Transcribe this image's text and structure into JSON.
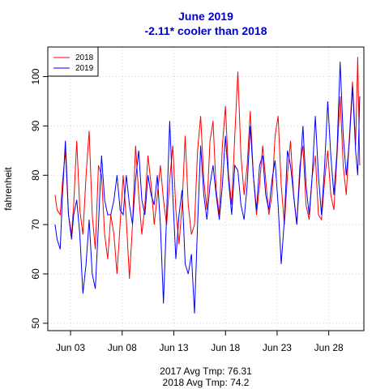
{
  "chart_data": {
    "type": "line",
    "title": "June 2019",
    "subtitle": "-2.11* cooler than 2018",
    "title_color": "#0000cc",
    "xlabel": "",
    "ylabel": "fahrenheit",
    "x_ticks": [
      "Jun 03",
      "Jun 08",
      "Jun 13",
      "Jun 18",
      "Jun 23",
      "Jun 28"
    ],
    "x_tick_days": [
      3,
      8,
      13,
      18,
      23,
      28
    ],
    "xlim_days": [
      0.8,
      31.4
    ],
    "ylim": [
      48.5,
      106
    ],
    "y_ticks": [
      50,
      60,
      70,
      80,
      90,
      100
    ],
    "grid": true,
    "legend": {
      "position": "top-left",
      "entries": [
        "2018",
        "2019"
      ]
    },
    "series": [
      {
        "name": "2018",
        "color": "#ff0000",
        "points": [
          [
            1.5,
            76
          ],
          [
            1.7,
            73
          ],
          [
            2.0,
            72
          ],
          [
            2.2,
            78
          ],
          [
            2.5,
            85
          ],
          [
            2.8,
            72
          ],
          [
            3.1,
            68
          ],
          [
            3.3,
            74
          ],
          [
            3.6,
            87
          ],
          [
            3.9,
            73
          ],
          [
            4.2,
            68
          ],
          [
            4.5,
            80
          ],
          [
            4.8,
            89
          ],
          [
            5.1,
            72
          ],
          [
            5.4,
            65
          ],
          [
            5.7,
            82
          ],
          [
            6.0,
            80
          ],
          [
            6.3,
            68
          ],
          [
            6.6,
            63
          ],
          [
            6.9,
            72
          ],
          [
            7.2,
            68
          ],
          [
            7.5,
            60
          ],
          [
            7.8,
            70
          ],
          [
            8.1,
            80
          ],
          [
            8.4,
            71
          ],
          [
            8.7,
            59
          ],
          [
            9.0,
            70
          ],
          [
            9.3,
            86
          ],
          [
            9.6,
            76
          ],
          [
            9.9,
            68
          ],
          [
            10.2,
            74
          ],
          [
            10.5,
            84
          ],
          [
            10.8,
            78
          ],
          [
            11.1,
            70
          ],
          [
            11.4,
            76
          ],
          [
            11.7,
            82
          ],
          [
            12.0,
            75
          ],
          [
            12.3,
            70
          ],
          [
            12.6,
            79
          ],
          [
            12.9,
            86
          ],
          [
            13.2,
            73
          ],
          [
            13.5,
            66
          ],
          [
            13.8,
            74
          ],
          [
            14.1,
            88
          ],
          [
            14.4,
            74
          ],
          [
            14.7,
            68
          ],
          [
            15.0,
            70
          ],
          [
            15.3,
            85
          ],
          [
            15.6,
            92
          ],
          [
            15.9,
            79
          ],
          [
            16.2,
            73
          ],
          [
            16.5,
            87
          ],
          [
            16.8,
            91
          ],
          [
            17.1,
            77
          ],
          [
            17.4,
            72
          ],
          [
            17.7,
            86
          ],
          [
            18.0,
            94
          ],
          [
            18.3,
            80
          ],
          [
            18.6,
            74
          ],
          [
            18.9,
            88
          ],
          [
            19.2,
            101
          ],
          [
            19.5,
            84
          ],
          [
            19.8,
            76
          ],
          [
            20.1,
            82
          ],
          [
            20.4,
            93
          ],
          [
            20.7,
            80
          ],
          [
            21.0,
            72
          ],
          [
            21.3,
            78
          ],
          [
            21.6,
            86
          ],
          [
            21.9,
            79
          ],
          [
            22.2,
            72
          ],
          [
            22.5,
            76
          ],
          [
            22.8,
            88
          ],
          [
            23.1,
            92
          ],
          [
            23.4,
            78
          ],
          [
            23.7,
            70
          ],
          [
            24.0,
            80
          ],
          [
            24.3,
            87
          ],
          [
            24.6,
            76
          ],
          [
            24.9,
            70
          ],
          [
            25.2,
            82
          ],
          [
            25.5,
            86
          ],
          [
            25.8,
            74
          ],
          [
            26.1,
            71
          ],
          [
            26.4,
            80
          ],
          [
            26.7,
            84
          ],
          [
            27.0,
            72
          ],
          [
            27.3,
            71
          ],
          [
            27.6,
            79
          ],
          [
            27.9,
            85
          ],
          [
            28.2,
            76
          ],
          [
            28.5,
            73
          ],
          [
            28.8,
            84
          ],
          [
            29.1,
            96
          ],
          [
            29.4,
            82
          ],
          [
            29.7,
            76
          ],
          [
            30.0,
            88
          ],
          [
            30.3,
            99
          ],
          [
            30.6,
            86
          ],
          [
            30.8,
            104
          ],
          [
            31.0,
            82
          ]
        ]
      },
      {
        "name": "2019",
        "color": "#0000ff",
        "points": [
          [
            1.5,
            70
          ],
          [
            1.7,
            67
          ],
          [
            2.0,
            65
          ],
          [
            2.2,
            75
          ],
          [
            2.5,
            87
          ],
          [
            2.8,
            72
          ],
          [
            3.1,
            67
          ],
          [
            3.3,
            72
          ],
          [
            3.6,
            75
          ],
          [
            3.9,
            68
          ],
          [
            4.2,
            56
          ],
          [
            4.5,
            62
          ],
          [
            4.8,
            71
          ],
          [
            5.1,
            60
          ],
          [
            5.4,
            57
          ],
          [
            5.7,
            70
          ],
          [
            6.0,
            84
          ],
          [
            6.3,
            75
          ],
          [
            6.6,
            72
          ],
          [
            6.9,
            72
          ],
          [
            7.2,
            75
          ],
          [
            7.5,
            80
          ],
          [
            7.8,
            73
          ],
          [
            8.1,
            72
          ],
          [
            8.4,
            80
          ],
          [
            8.7,
            74
          ],
          [
            9.0,
            70
          ],
          [
            9.3,
            79
          ],
          [
            9.6,
            85
          ],
          [
            9.9,
            75
          ],
          [
            10.2,
            72
          ],
          [
            10.5,
            80
          ],
          [
            10.8,
            76
          ],
          [
            11.1,
            74
          ],
          [
            11.4,
            80
          ],
          [
            11.7,
            70
          ],
          [
            12.0,
            54
          ],
          [
            12.3,
            72
          ],
          [
            12.6,
            91
          ],
          [
            12.9,
            76
          ],
          [
            13.2,
            63
          ],
          [
            13.5,
            72
          ],
          [
            13.8,
            77
          ],
          [
            14.1,
            62
          ],
          [
            14.4,
            60
          ],
          [
            14.7,
            64
          ],
          [
            15.0,
            52
          ],
          [
            15.3,
            70
          ],
          [
            15.6,
            86
          ],
          [
            15.9,
            76
          ],
          [
            16.2,
            71
          ],
          [
            16.5,
            78
          ],
          [
            16.8,
            82
          ],
          [
            17.1,
            76
          ],
          [
            17.4,
            71
          ],
          [
            17.7,
            78
          ],
          [
            18.0,
            88
          ],
          [
            18.3,
            79
          ],
          [
            18.6,
            72
          ],
          [
            18.9,
            82
          ],
          [
            19.2,
            81
          ],
          [
            19.5,
            74
          ],
          [
            19.8,
            71
          ],
          [
            20.1,
            78
          ],
          [
            20.4,
            90
          ],
          [
            20.7,
            80
          ],
          [
            21.0,
            73
          ],
          [
            21.3,
            82
          ],
          [
            21.6,
            84
          ],
          [
            21.9,
            76
          ],
          [
            22.2,
            73
          ],
          [
            22.5,
            79
          ],
          [
            22.8,
            83
          ],
          [
            23.1,
            74
          ],
          [
            23.4,
            62
          ],
          [
            23.7,
            71
          ],
          [
            24.0,
            85
          ],
          [
            24.3,
            82
          ],
          [
            24.6,
            76
          ],
          [
            24.9,
            70
          ],
          [
            25.2,
            80
          ],
          [
            25.5,
            90
          ],
          [
            25.8,
            78
          ],
          [
            26.1,
            72
          ],
          [
            26.4,
            80
          ],
          [
            26.7,
            92
          ],
          [
            27.0,
            80
          ],
          [
            27.3,
            72
          ],
          [
            27.6,
            82
          ],
          [
            27.9,
            95
          ],
          [
            28.2,
            84
          ],
          [
            28.5,
            76
          ],
          [
            28.8,
            85
          ],
          [
            29.1,
            103
          ],
          [
            29.4,
            88
          ],
          [
            29.7,
            80
          ],
          [
            30.0,
            87
          ],
          [
            30.3,
            98
          ],
          [
            30.6,
            85
          ],
          [
            30.8,
            80
          ],
          [
            31.0,
            96
          ]
        ]
      }
    ]
  },
  "notes": [
    "2017 Avg Tmp: 76.31",
    "2018 Avg Tmp: 74.2"
  ]
}
